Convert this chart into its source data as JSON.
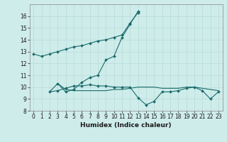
{
  "title": "",
  "xlabel": "Humidex (Indice chaleur)",
  "bg_color": "#ceecea",
  "line_color": "#1a6b6b",
  "grid_color": "#b8dbd9",
  "xlim": [
    -0.5,
    23.5
  ],
  "ylim": [
    8,
    17
  ],
  "xticks": [
    0,
    1,
    2,
    3,
    4,
    5,
    6,
    7,
    8,
    9,
    10,
    11,
    12,
    13,
    14,
    15,
    16,
    17,
    18,
    19,
    20,
    21,
    22,
    23
  ],
  "yticks": [
    8,
    9,
    10,
    11,
    12,
    13,
    14,
    15,
    16
  ],
  "series1_x": [
    0,
    1,
    2,
    3,
    4,
    5,
    6,
    7,
    8,
    9,
    10,
    11,
    12,
    13
  ],
  "series1_y": [
    12.8,
    12.6,
    12.8,
    13.0,
    13.2,
    13.4,
    13.5,
    13.7,
    13.9,
    14.0,
    14.2,
    14.4,
    15.4,
    16.3
  ],
  "series2_x": [
    3,
    4,
    5,
    6,
    7,
    8,
    9,
    10,
    11,
    12,
    13
  ],
  "series2_y": [
    10.3,
    9.6,
    9.8,
    10.4,
    10.8,
    11.0,
    12.3,
    12.6,
    14.2,
    15.3,
    16.4
  ],
  "series3_x": [
    2,
    3,
    4,
    5,
    6,
    7,
    8,
    9,
    10,
    11,
    12,
    13,
    14,
    15,
    16,
    17,
    18,
    19,
    20,
    21,
    22,
    23
  ],
  "series3_y": [
    9.6,
    9.7,
    9.9,
    10.1,
    10.1,
    10.2,
    10.1,
    10.1,
    10.0,
    10.0,
    10.0,
    9.1,
    8.5,
    8.8,
    9.6,
    9.6,
    9.7,
    9.9,
    10.0,
    9.7,
    9.0,
    9.6
  ],
  "series4_x": [
    2,
    3,
    4,
    5,
    6,
    7,
    8,
    9,
    10,
    11,
    12,
    13,
    14,
    15,
    16,
    17,
    18,
    19,
    20,
    21,
    22,
    23
  ],
  "series4_y": [
    9.6,
    10.3,
    9.8,
    9.7,
    9.7,
    9.7,
    9.7,
    9.7,
    9.8,
    9.8,
    9.9,
    10.0,
    10.0,
    10.0,
    9.9,
    9.9,
    9.9,
    10.0,
    10.0,
    9.9,
    9.8,
    9.7
  ]
}
